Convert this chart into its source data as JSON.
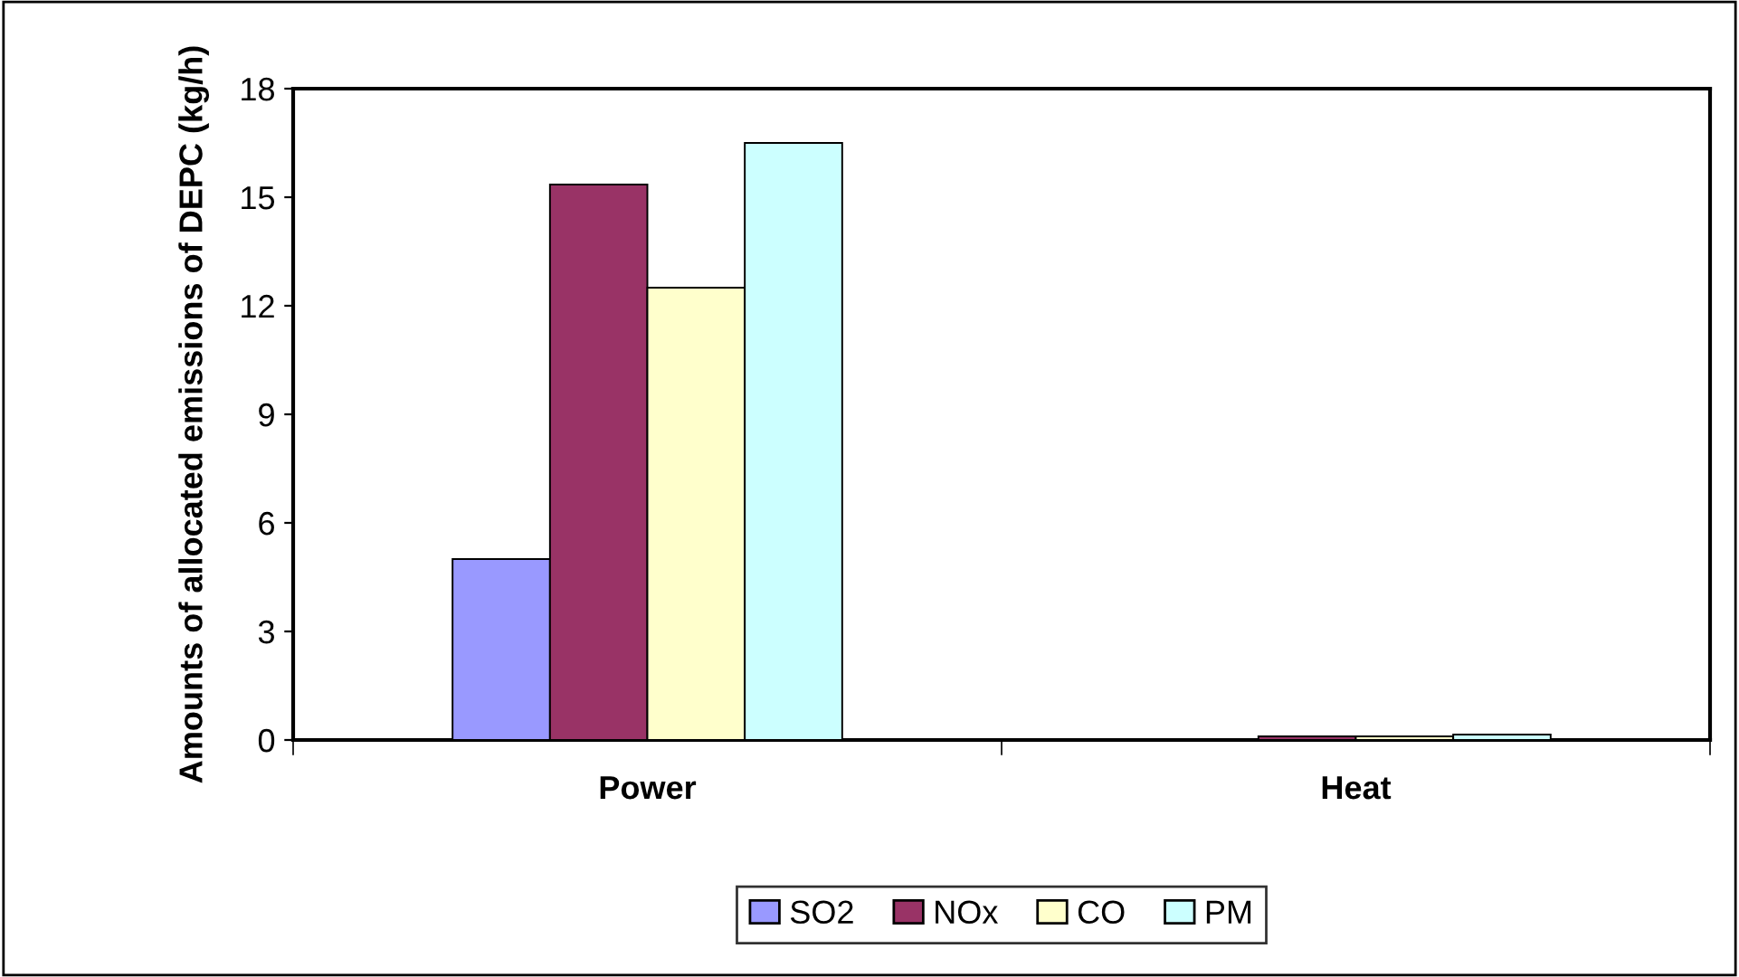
{
  "chart_data": {
    "type": "bar",
    "ylabel": "Amounts of allocated emissions of DEPC (kg/h)",
    "categories": [
      "Power",
      "Heat"
    ],
    "series": [
      {
        "name": "SO2",
        "color": "#9999ff",
        "values": [
          5.0,
          null
        ]
      },
      {
        "name": "NOx",
        "color": "#993366",
        "values": [
          15.35,
          0.1
        ]
      },
      {
        "name": "CO",
        "color": "#ffffcc",
        "values": [
          12.5,
          0.1
        ]
      },
      {
        "name": "PM",
        "color": "#ccffff",
        "values": [
          16.5,
          0.15
        ]
      }
    ],
    "ylim": [
      0,
      18
    ],
    "yticks": [
      0,
      3,
      6,
      9,
      12,
      15,
      18
    ],
    "grid": false,
    "legend": "bottom"
  }
}
